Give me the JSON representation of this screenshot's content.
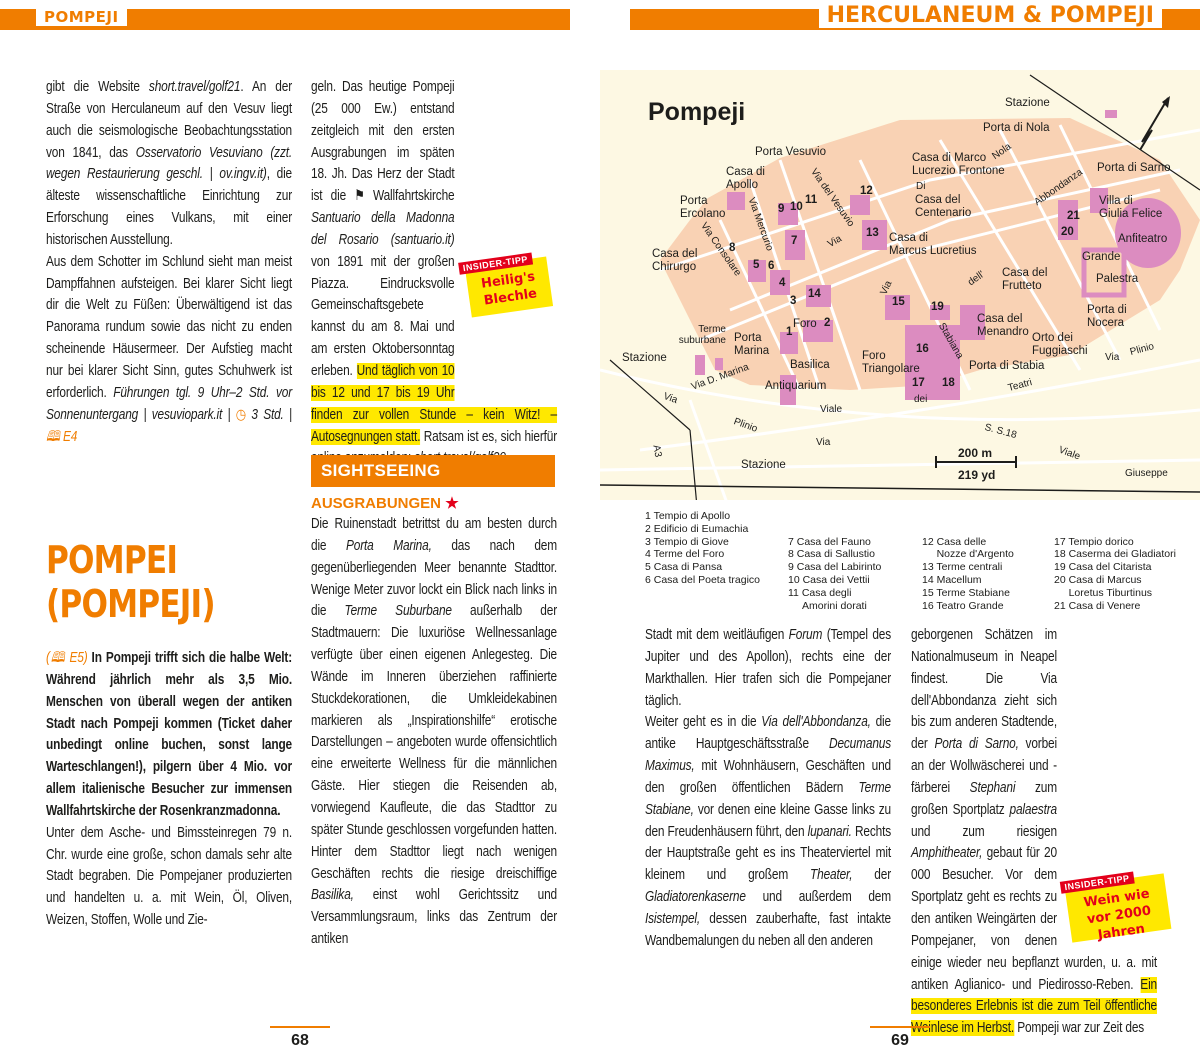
{
  "header": {
    "left": "POMPEJI",
    "right": "HERCULANEUM & POMPEJI"
  },
  "left_column": {
    "p1": [
      [
        "gibt die Website ",
        ""
      ],
      [
        "short.travel/golf21",
        ".i"
      ],
      [
        ". An der Straße von Herculaneum auf den Vesuv liegt auch die seismologische Beobachtungsstation von 1841, das ",
        ""
      ],
      [
        "Osservatorio Vesuviano (zzt. wegen Restaurierung geschl. | ov.ingv.it)",
        "i"
      ],
      [
        ", die älteste wissenschaftliche Einrichtung zur Erforschung eines Vulkans, mit einer historischen Ausstellung.",
        ""
      ]
    ],
    "p2": [
      [
        "Aus dem Schotter im Schlund sieht man meist Dampffahnen aufsteigen. Bei klarer Sicht liegt dir die Welt zu Füßen: Überwältigend ist das Panorama rundum sowie das nicht zu enden scheinende Häusermeer. Der Aufstieg macht nur bei klarer Sicht Sinn, gutes Schuhwerk ist erforderlich. ",
        ""
      ],
      [
        "Führungen tgl. 9 Uhr–2 Std. vor Sonnenuntergang | vesuviopark.it | ",
        "i"
      ],
      [
        "◷",
        "o"
      ],
      [
        " 3 Std. | ",
        "i"
      ],
      [
        "🕮 E4",
        "o i"
      ]
    ],
    "title": "POMPEI (POMPEJI)",
    "p3": [
      [
        "(🕮 E5) ",
        "o i"
      ],
      [
        "In Pompeji trifft sich die halbe Welt: Während jährlich mehr als 3,5 Mio. Menschen von überall wegen der antiken Stadt nach Pompeji kommen (Ticket daher unbedingt online buchen, sonst lange Warteschlangen!), pilgern über 4 Mio. vor allem italienische Besucher zur immensen Wallfahrtskirche der Rosenkranzmadonna.",
        "b"
      ]
    ],
    "p4": [
      [
        "Unter dem Asche- und Bimssteinregen 79 n. Chr. wurde eine große, schon damals sehr alte Stadt begraben. Die Pompejaner produzierten und handelten u. a. mit Wein, Öl, Oliven, Weizen, Stoffen, Wolle und Zie-",
        ""
      ]
    ]
  },
  "middle_column": {
    "p1": [
      [
        "geln. Das heutige Pompeji (25 000 Ew.) entstand zeitgleich mit den ersten Ausgrabungen im späten 18. Jh. Das Herz der Stadt ist die ⚑ Wallfahrtskirche ",
        ""
      ],
      [
        "Santuario della Madonna del Rosario (santuario.it)",
        "i"
      ],
      [
        " von 1891 mit der großen Piazza. Eindrucksvolle Gemeinschaftsgebete kannst du am 8. Mai und am ersten Oktobersonntag erleben. ",
        ""
      ],
      [
        "Und täglich von 10 bis 12 und 17 bis 19 Uhr finden zur vollen Stunde – kein Witz! – Autosegnungen statt.",
        "hl"
      ],
      [
        " Ratsam ist es, sich hierfür online anzumelden: ",
        ""
      ],
      [
        "short.travel/golf20",
        "i"
      ]
    ],
    "tip": {
      "label": "INSIDER-TIPP",
      "text": "Heilig's Blechle"
    },
    "section": "SIGHTSEEING",
    "subheading": "AUSGRABUNGEN",
    "p2": [
      [
        "Die Ruinenstadt betrittst du am besten durch die ",
        ""
      ],
      [
        "Porta Marina,",
        "i"
      ],
      [
        " das nach dem gegenüberliegenden Meer benannte Stadttor. Wenige Meter zuvor lockt ein Blick nach links in die ",
        ""
      ],
      [
        "Terme Suburbane",
        "i"
      ],
      [
        " außerhalb der Stadtmauern: Die luxuriöse Wellnessanlage verfügte über einen eigenen Anlegesteg. Die Wände im Inneren überziehen raffinierte Stuckdekorationen, die Umkleidekabinen markieren als „Inspirationshilfe“ erotische Darstellungen – angeboten wurde offensichtlich eine erweiterte Wellness für die männlichen Gäste. Hier stiegen die Reisenden ab, vorwiegend Kaufleute, die das Stadttor zu später Stunde geschlossen vorgefunden hatten. Hinter dem Stadttor liegt nach wenigen Geschäften rechts die riesige dreischiffige ",
        ""
      ],
      [
        "Basilika,",
        "i"
      ],
      [
        " einst wohl Gerichtssitz und Versammlungsraum, links das Zentrum der antiken",
        ""
      ]
    ]
  },
  "map": {
    "title": "Pompeji",
    "labels": [
      "Stazione",
      "Porta di Nola",
      "Porta Vesuvio",
      "Casa di Marco\nLucrezio Frontone",
      "Porta di Sarno",
      "Casa di\nApollo",
      "Porta\nErcolano",
      "Villa di\nGiulia Felice",
      "Casa del\nCentenario",
      "Anfiteatro",
      "Casa di\nMarcus Lucretius",
      "Casa del\nChirurgo",
      "Grande",
      "Casa del\nFrutteto",
      "Palestra",
      "Porta di\nNocera",
      "Casa del\nMenandro",
      "Orto dei\nFuggiaschi",
      "Terme\nsuburbane",
      "Porta\nMarina",
      "Foro",
      "Stazione",
      "Basilica",
      "Foro\nTriangolare",
      "Porta di Stabia",
      "Antiquarium",
      "Viale",
      "Plinio",
      "Via",
      "S. S.18",
      "Viale",
      "Giuseppe",
      "A3",
      "Stazione",
      "Via del Vesuvio",
      "Via Mercurio",
      "Via Consolare",
      "Nola",
      "Abbondanza",
      "Stabiana",
      "Via D. Marina",
      "Teatri",
      "Via",
      "Plinio",
      "dei",
      "Via",
      "Via",
      "dell'",
      "Di",
      "Via"
    ],
    "numbers": [
      "1",
      "2",
      "3",
      "4",
      "5",
      "6",
      "7",
      "8",
      "9",
      "10",
      "11",
      "12",
      "13",
      "14",
      "15",
      "16",
      "17",
      "18",
      "19",
      "20",
      "21"
    ],
    "scale": {
      "metric": "200 m",
      "imperial": "219 yd"
    },
    "legend": [
      [
        "1 Tempio di Apollo",
        "2 Edificio di Eumachia",
        "3 Tempio di Giove",
        "4  Terme del Foro",
        "5 Casa di Pansa",
        "6 Casa del Poeta tragico"
      ],
      [
        "7 Casa del Fauno",
        "8 Casa di Sallustio",
        "9 Casa del Labirinto",
        "10 Casa dei Vettii",
        "11 Casa degli",
        "     Amorini dorati"
      ],
      [
        "12 Casa delle",
        "     Nozze d'Argento",
        "13 Terme centrali",
        "14 Macellum",
        "15 Terme Stabiane",
        "16 Teatro Grande"
      ],
      [
        "17 Tempio dorico",
        "18 Caserma dei Gladiatori",
        "19 Casa del Citarista",
        "20 Casa di Marcus",
        "     Loretus Tiburtinus",
        "21 Casa di Venere"
      ]
    ],
    "colors": {
      "city": "#f9d2b4",
      "sites": "#dc8cc0",
      "background": "#fdf8e3"
    }
  },
  "right_column_1": {
    "p1": [
      [
        "Stadt mit dem weitläufigen ",
        ""
      ],
      [
        "Forum",
        "i"
      ],
      [
        " (Tempel des Jupiter und des Apollon), rechts eine der Markthallen. Hier trafen sich die Pompejaner täglich.",
        ""
      ]
    ],
    "p2": [
      [
        "Weiter geht es in die ",
        ""
      ],
      [
        "Via dell'Abbondanza,",
        "i"
      ],
      [
        " die antike Hauptgeschäftsstraße ",
        ""
      ],
      [
        "Decumanus Maximus,",
        "i"
      ],
      [
        " mit Wohnhäusern, Geschäften und den großen öffentlichen Bädern ",
        ""
      ],
      [
        "Terme Stabiane,",
        "i"
      ],
      [
        " vor denen eine kleine Gasse links zu den Freudenhäusern führt, den ",
        ""
      ],
      [
        "lupanari.",
        "i"
      ],
      [
        " Rechts der Hauptstraße geht es ins Theaterviertel mit kleinem und großem ",
        ""
      ],
      [
        "Theater,",
        "i"
      ],
      [
        " der ",
        ""
      ],
      [
        "Gladiatorenkaserne",
        "i"
      ],
      [
        " und außerdem dem ",
        ""
      ],
      [
        "Isistempel,",
        "i"
      ],
      [
        " dessen zauberhafte, fast intakte Wandbemalungen du neben all den anderen",
        ""
      ]
    ]
  },
  "right_column_2": {
    "p1": [
      [
        "geborgenen Schätzen im Nationalmuseum in Neapel findest. Die Via dell'Abbondanza zieht sich bis zum anderen Stadtende, der ",
        ""
      ],
      [
        "Porta di Sarno,",
        "i"
      ],
      [
        " vorbei an der Wollwäscherei und -färberei ",
        ""
      ],
      [
        "Stephani",
        "i"
      ],
      [
        " zum großen Sportplatz ",
        ""
      ],
      [
        "palaestra",
        "i"
      ],
      [
        " und zum riesigen ",
        ""
      ],
      [
        "Amphitheater,",
        "i"
      ],
      [
        " gebaut für 20 000 Besucher. Vor dem Sportplatz geht es rechts zu den antiken Weingärten der Pompejaner, von denen einige wieder neu bepflanzt wurden, u. a. mit antiken Aglianico- und Piedirosso-Reben. ",
        ""
      ],
      [
        "Ein besonderes Erlebnis ist die zum Teil öffentliche Weinlese im Herbst.",
        "hl"
      ],
      [
        " Pompeji war zur Zeit des",
        ""
      ]
    ],
    "tip": {
      "label": "INSIDER-TIPP",
      "text": "Wein wie vor 2000 Jahren"
    }
  },
  "page_numbers": {
    "left": "68",
    "right": "69"
  },
  "colors": {
    "accent": "#f07d00",
    "highlight": "#ffe800",
    "tip_red": "#e3001b"
  }
}
